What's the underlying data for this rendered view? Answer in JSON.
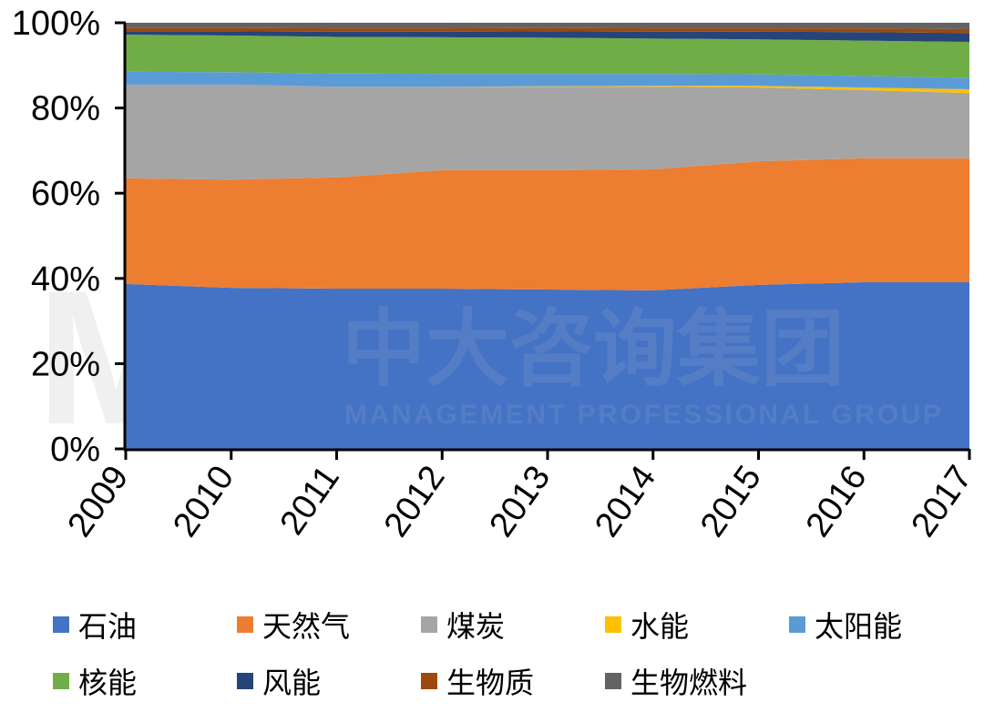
{
  "chart_data": {
    "type": "area",
    "stacked": true,
    "normalized": true,
    "title": "",
    "xlabel": "",
    "ylabel": "",
    "ylim": [
      0,
      100
    ],
    "yticks": [
      "0%",
      "20%",
      "40%",
      "60%",
      "80%",
      "100%"
    ],
    "categories": [
      "2009",
      "2010",
      "2011",
      "2012",
      "2013",
      "2014",
      "2015",
      "2016",
      "2017"
    ],
    "series": [
      {
        "name": "石油",
        "color": "#4472C4",
        "values": [
          38.7,
          37.8,
          37.6,
          37.6,
          37.4,
          37.2,
          38.5,
          39.1,
          39.1
        ]
      },
      {
        "name": "天然气",
        "color": "#ED7D31",
        "values": [
          24.8,
          25.4,
          26.1,
          27.8,
          28.0,
          28.4,
          29.0,
          29.1,
          29.1
        ]
      },
      {
        "name": "煤炭",
        "color": "#A5A5A5",
        "values": [
          22.0,
          22.3,
          21.3,
          19.6,
          19.6,
          19.4,
          17.3,
          16.0,
          15.3
        ]
      },
      {
        "name": "水能",
        "color": "#FFC000",
        "values": [
          0.0,
          0.0,
          0.0,
          0.0,
          0.1,
          0.2,
          0.4,
          0.6,
          0.9
        ]
      },
      {
        "name": "太阳能",
        "color": "#5B9BD5",
        "values": [
          3.0,
          2.9,
          3.1,
          3.0,
          2.9,
          2.8,
          2.7,
          2.7,
          2.7
        ]
      },
      {
        "name": "核能",
        "color": "#70AD47",
        "values": [
          8.7,
          8.6,
          8.6,
          8.6,
          8.5,
          8.3,
          8.2,
          8.3,
          8.4
        ]
      },
      {
        "name": "风能",
        "color": "#264478",
        "values": [
          0.8,
          1.0,
          1.2,
          1.3,
          1.5,
          1.6,
          1.8,
          2.0,
          2.1
        ]
      },
      {
        "name": "生物质",
        "color": "#9E480E",
        "values": [
          0.8,
          0.8,
          0.8,
          0.8,
          0.8,
          0.8,
          0.8,
          0.9,
          0.9
        ]
      },
      {
        "name": "生物燃料",
        "color": "#636363",
        "values": [
          1.2,
          1.2,
          1.3,
          1.3,
          1.2,
          1.3,
          1.3,
          1.3,
          1.5
        ]
      }
    ],
    "legend_position": "bottom",
    "grid": false,
    "watermark": {
      "cn": "中大咨询集团",
      "en": "MANAGEMENT PROFESSIONAL GROUP",
      "logo": "MP"
    }
  },
  "legend": [
    {
      "label": "石油",
      "color": "#4472C4"
    },
    {
      "label": "天然气",
      "color": "#ED7D31"
    },
    {
      "label": "煤炭",
      "color": "#A5A5A5"
    },
    {
      "label": "水能",
      "color": "#FFC000"
    },
    {
      "label": "太阳能",
      "color": "#5B9BD5"
    },
    {
      "label": "核能",
      "color": "#70AD47"
    },
    {
      "label": "风能",
      "color": "#264478"
    },
    {
      "label": "生物质",
      "color": "#9E480E"
    },
    {
      "label": "生物燃料",
      "color": "#636363"
    }
  ]
}
